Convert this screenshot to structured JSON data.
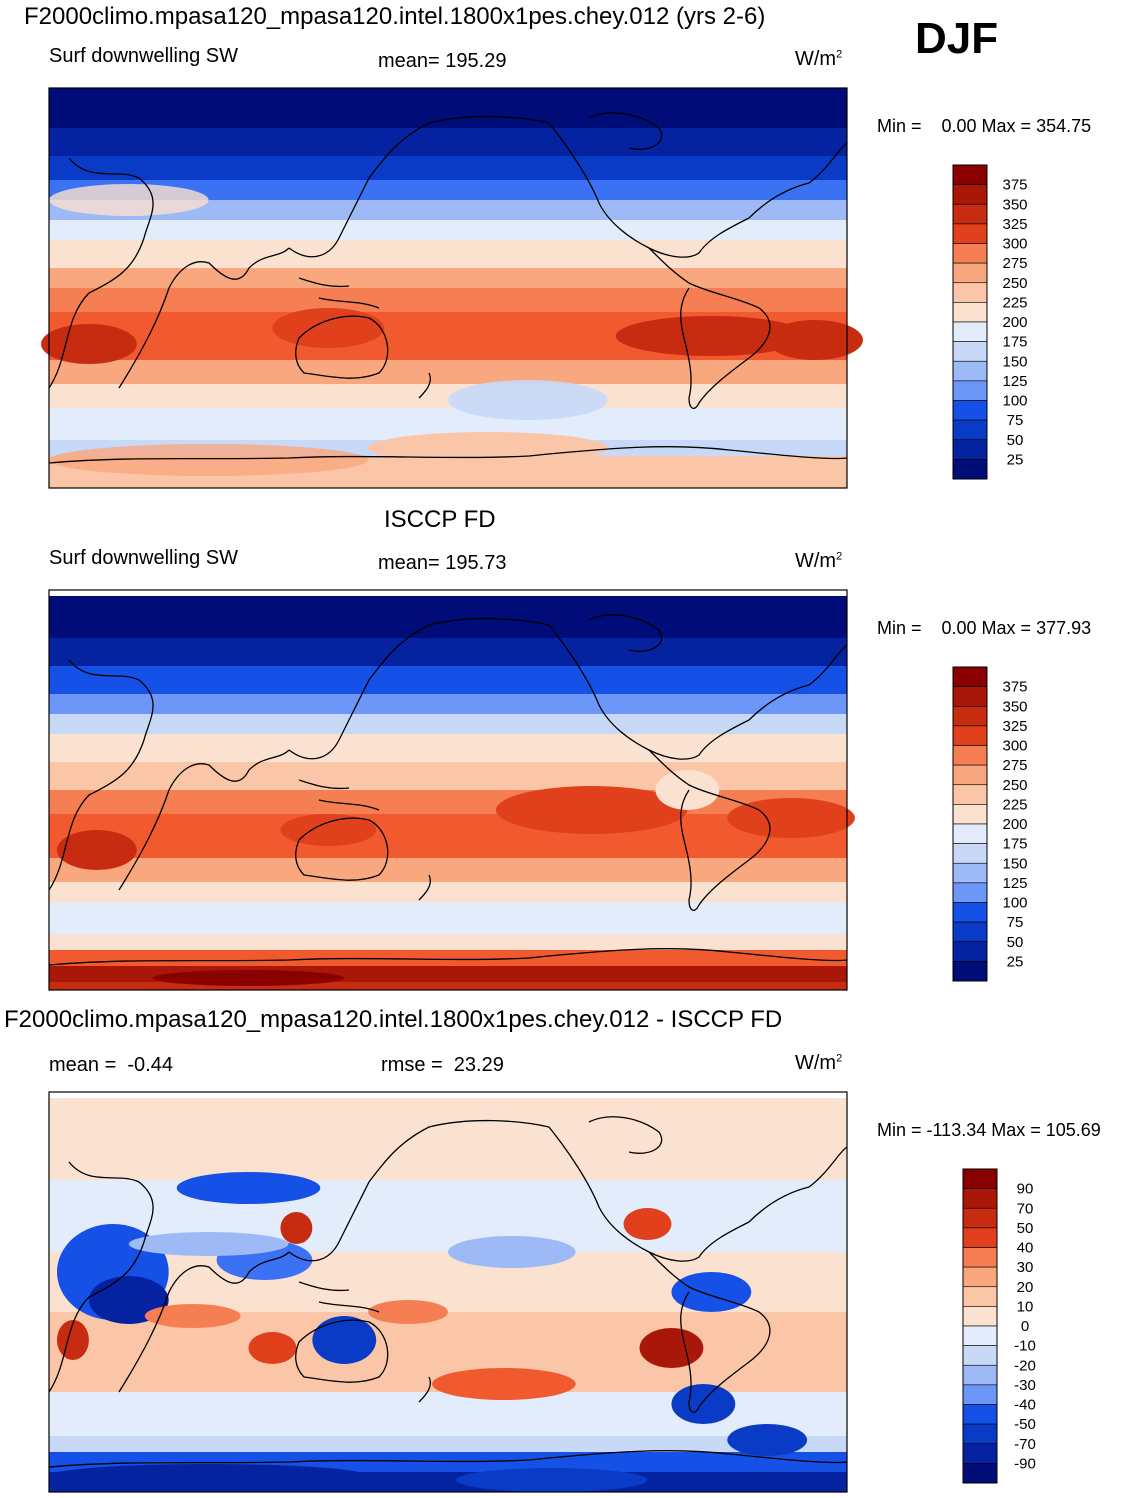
{
  "season": "DJF",
  "colors": {
    "blues": [
      "#000c78",
      "#0522a0",
      "#0a3bc6",
      "#1551e6",
      "#3a72f3",
      "#6c96f7",
      "#9dbaf7",
      "#c8d9f8",
      "#e2ecfb"
    ],
    "reds": [
      "#fbe1cf",
      "#fbc6a8",
      "#f9a77f",
      "#f57e53",
      "#f05a2e",
      "#e0401c",
      "#c72b10",
      "#a81707",
      "#8a0000"
    ],
    "coast": "#000000"
  },
  "chart_data": [
    {
      "type": "heatmap",
      "title": "F2000climo.mpasa120_mpasa120.intel.1800x1pes.chey.012 (yrs 2-6)",
      "variable": "Surf downwelling SW",
      "stat_left": "",
      "mean_text": "mean= 195.29",
      "units": "W/m",
      "units_sup": "2",
      "minmax": "Min =    0.00 Max = 354.75",
      "colorbar": [
        "375",
        "350",
        "325",
        "300",
        "275",
        "250",
        "225",
        "200",
        "175",
        "150",
        "125",
        "100",
        "75",
        "50",
        "25"
      ],
      "mean": 195.29,
      "min": 0.0,
      "max": 354.75
    },
    {
      "type": "heatmap",
      "title": "ISCCP FD",
      "variable": "Surf downwelling SW",
      "stat_left": "",
      "mean_text": "mean= 195.73",
      "units": "W/m",
      "units_sup": "2",
      "minmax": "Min =    0.00 Max = 377.93",
      "colorbar": [
        "375",
        "350",
        "325",
        "300",
        "275",
        "250",
        "225",
        "200",
        "175",
        "150",
        "125",
        "100",
        "75",
        "50",
        "25"
      ],
      "mean": 195.73,
      "min": 0.0,
      "max": 377.93
    },
    {
      "type": "heatmap",
      "title": "F2000climo.mpasa120_mpasa120.intel.1800x1pes.chey.012 - ISCCP FD",
      "variable": "",
      "stat_left": "mean =  -0.44",
      "mean_text": "rmse =  23.29",
      "units": "W/m",
      "units_sup": "2",
      "minmax": "Min = -113.34 Max = 105.69",
      "colorbar": [
        "90",
        "70",
        "50",
        "40",
        "30",
        "20",
        "10",
        "0",
        "-10",
        "-20",
        "-30",
        "-40",
        "-50",
        "-70",
        "-90"
      ],
      "mean": -0.44,
      "rmse": 23.29,
      "min": -113.34,
      "max": 105.69
    }
  ]
}
